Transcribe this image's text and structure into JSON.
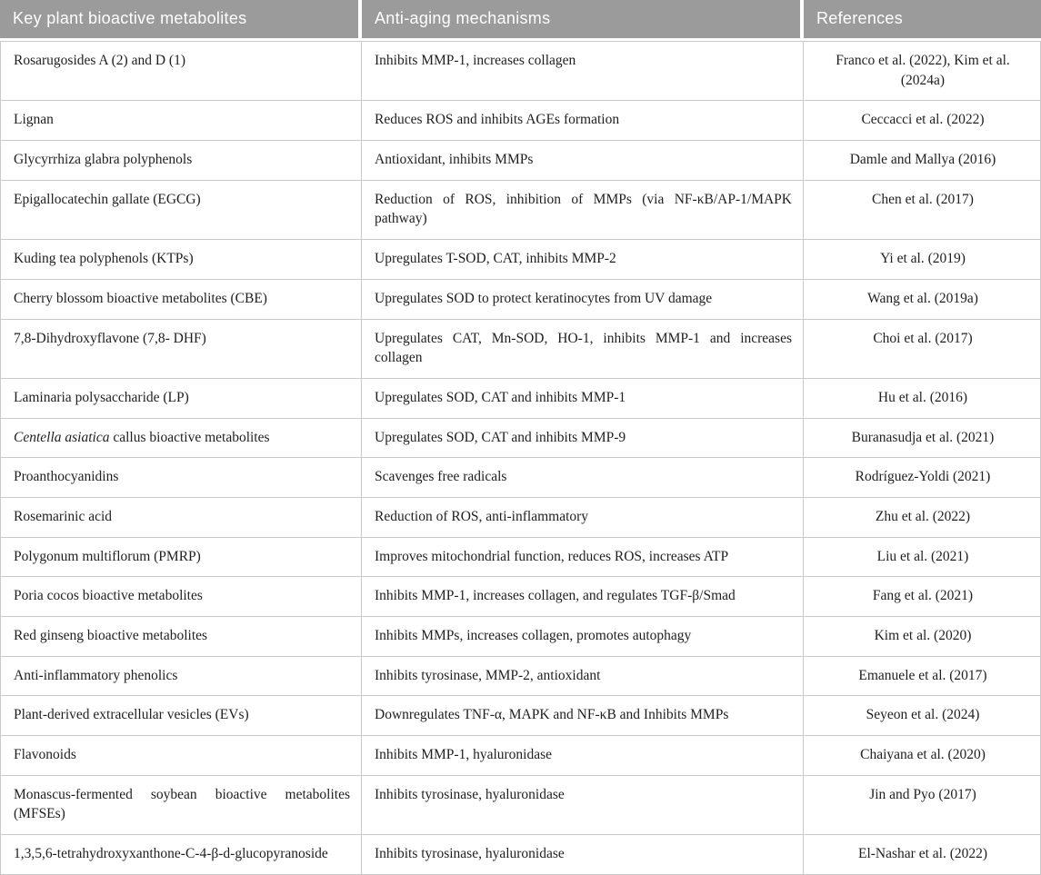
{
  "table": {
    "columns": [
      "Key plant bioactive metabolites",
      "Anti-aging mechanisms",
      "References"
    ],
    "colors": {
      "header_bg": "#9b9b9b",
      "header_text": "#ffffff",
      "row_border": "#c9c9c9",
      "body_text": "#1f1f1f"
    },
    "rows": [
      {
        "metabolite": "Rosarugosides A (2) and D (1)",
        "mechanism": "Inhibits MMP-1, increases collagen",
        "reference": "Franco et al. (2022), Kim et al. (2024a)"
      },
      {
        "metabolite": "Lignan",
        "mechanism": "Reduces ROS and inhibits AGEs formation",
        "reference": "Ceccacci et al. (2022)"
      },
      {
        "metabolite": "Glycyrrhiza glabra polyphenols",
        "mechanism": "Antioxidant, inhibits MMPs",
        "reference": "Damle and Mallya (2016)"
      },
      {
        "metabolite": "Epigallocatechin gallate (EGCG)",
        "mechanism": "Reduction of ROS, inhibition of MMPs (via NF-κB/AP-1/MAPK pathway)",
        "reference": "Chen et al. (2017)",
        "tall": true
      },
      {
        "metabolite": "Kuding tea polyphenols (KTPs)",
        "mechanism": "Upregulates T-SOD, CAT, inhibits MMP-2",
        "reference": "Yi et al. (2019)"
      },
      {
        "metabolite": "Cherry blossom bioactive metabolites (CBE)",
        "mechanism": "Upregulates SOD to protect keratinocytes from UV damage",
        "reference": "Wang et al. (2019a)"
      },
      {
        "metabolite": "7,8-Dihydroxyflavone (7,8- DHF)",
        "mechanism": "Upregulates CAT, Mn-SOD, HO-1, inhibits MMP-1 and increases collagen",
        "reference": "Choi et al. (2017)",
        "tall": true
      },
      {
        "metabolite": "Laminaria polysaccharide (LP)",
        "mechanism": "Upregulates SOD, CAT and inhibits MMP-1",
        "reference": "Hu et al. (2016)"
      },
      {
        "metabolite": "Centella asiatica callus bioactive metabolites",
        "italic_part": "Centella asiatica",
        "mechanism": "Upregulates SOD, CAT and inhibits MMP-9",
        "reference": "Buranasudja et al. (2021)"
      },
      {
        "metabolite": "Proanthocyanidins",
        "mechanism": "Scavenges free radicals",
        "reference": "Rodríguez-Yoldi (2021)"
      },
      {
        "metabolite": "Rosemarinic acid",
        "mechanism": "Reduction of ROS, anti-inflammatory",
        "reference": "Zhu et al. (2022)"
      },
      {
        "metabolite": "Polygonum multiflorum (PMRP)",
        "mechanism": "Improves mitochondrial function, reduces ROS, increases ATP",
        "reference": "Liu et al. (2021)"
      },
      {
        "metabolite": "Poria cocos bioactive metabolites",
        "mechanism": "Inhibits MMP-1, increases collagen, and regulates TGF-β/Smad",
        "reference": "Fang et al. (2021)"
      },
      {
        "metabolite": "Red ginseng bioactive metabolites",
        "mechanism": "Inhibits MMPs, increases collagen, promotes autophagy",
        "reference": "Kim et al. (2020)"
      },
      {
        "metabolite": "Anti-inflammatory phenolics",
        "mechanism": "Inhibits tyrosinase, MMP-2, antioxidant",
        "reference": "Emanuele et al. (2017)"
      },
      {
        "metabolite": "Plant-derived extracellular vesicles (EVs)",
        "mechanism": "Downregulates TNF-α, MAPK and NF-κB and Inhibits MMPs",
        "reference": "Seyeon et al. (2024)"
      },
      {
        "metabolite": "Flavonoids",
        "mechanism": "Inhibits MMP-1, hyaluronidase",
        "reference": "Chaiyana et al. (2020)"
      },
      {
        "metabolite": "Monascus-fermented soybean bioactive metabolites (MFSEs)",
        "mechanism": "Inhibits tyrosinase, hyaluronidase",
        "reference": "Jin and Pyo (2017)",
        "tall": true
      },
      {
        "metabolite": "1,3,5,6-tetrahydroxyxanthone-C-4-β-d-glucopyranoside",
        "mechanism": "Inhibits tyrosinase, hyaluronidase",
        "reference": "El-Nashar et al. (2022)"
      }
    ]
  }
}
